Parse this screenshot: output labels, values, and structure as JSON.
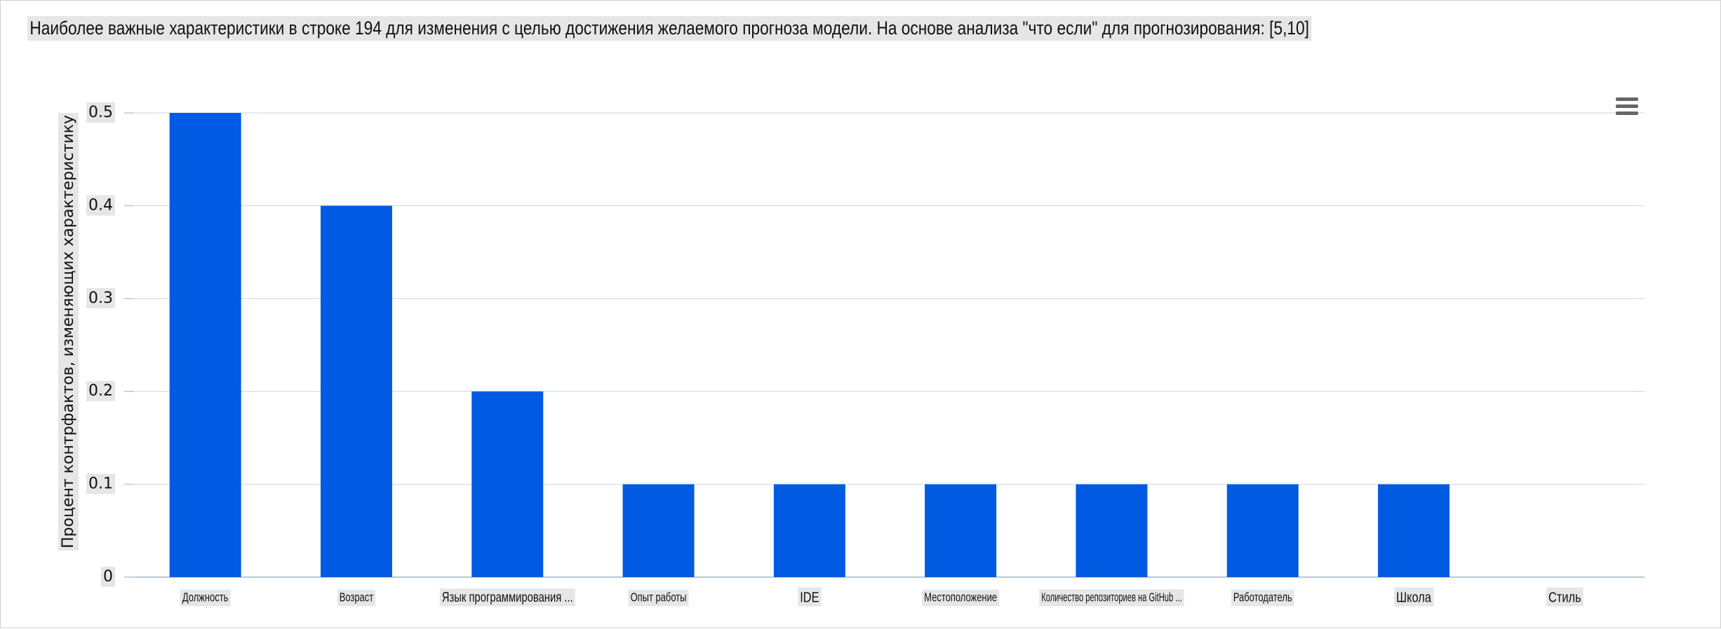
{
  "chart_data": {
    "type": "bar",
    "title": "Наиболее важные характеристики в строке 194 для изменения с целью достижения желаемого прогноза модели. На основе анализа \"что если\" для прогнозирования: [5,10]",
    "xlabel": "",
    "ylabel": "Процент контрфактов, изменяющих характеристику",
    "ylim": [
      0,
      0.5
    ],
    "yticks": [
      0,
      0.1,
      0.2,
      0.3,
      0.4,
      0.5
    ],
    "ytick_labels": [
      "0",
      "0.1",
      "0.2",
      "0.3",
      "0.4",
      "0.5"
    ],
    "grid": true,
    "legend": "none",
    "bar_color": "#005be2",
    "categories": [
      "Должность",
      "Возраст",
      "Язык программирования ...",
      "Опыт работы",
      "IDE",
      "Местоположение",
      "Количество репозиториев на GitHub ...",
      "Работодатель",
      "Школа",
      "Стиль"
    ],
    "values": [
      0.5,
      0.4,
      0.2,
      0.1,
      0.1,
      0.1,
      0.1,
      0.1,
      0.1,
      0
    ]
  },
  "toolbar": {
    "menu_icon": "hamburger-menu-icon"
  }
}
